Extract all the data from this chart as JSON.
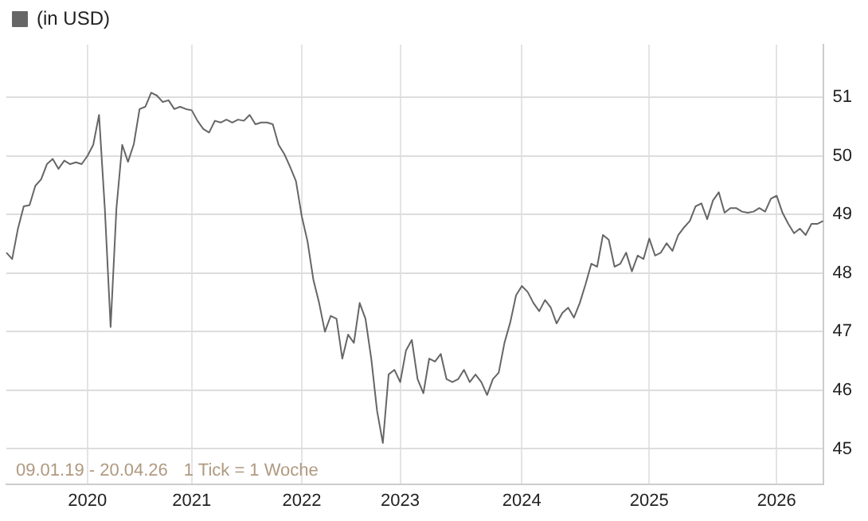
{
  "chart_data": {
    "type": "line",
    "categories": [
      null,
      null,
      null,
      null,
      null,
      null,
      null,
      null,
      null,
      null,
      null,
      null,
      null,
      null,
      "2020",
      null,
      null,
      null,
      null,
      null,
      null,
      null,
      null,
      null,
      null,
      null,
      null,
      null,
      null,
      null,
      null,
      null,
      "2021",
      null,
      null,
      null,
      null,
      null,
      null,
      null,
      null,
      null,
      null,
      null,
      null,
      null,
      null,
      null,
      null,
      null,
      null,
      "2022",
      null,
      null,
      null,
      null,
      null,
      null,
      null,
      null,
      null,
      null,
      null,
      null,
      null,
      null,
      null,
      null,
      "2023",
      null,
      null,
      null,
      null,
      null,
      null,
      null,
      null,
      null,
      null,
      null,
      null,
      null,
      null,
      null,
      null,
      null,
      null,
      null,
      null,
      "2024",
      null,
      null,
      null,
      null,
      null,
      null,
      null,
      null,
      null,
      null,
      null,
      null,
      null,
      null,
      null,
      null,
      null,
      null,
      null,
      null,
      null,
      "2025",
      null,
      null,
      null,
      null,
      null,
      null,
      null,
      null,
      null,
      null,
      null,
      null,
      null,
      null,
      null,
      null,
      null,
      null,
      null,
      null,
      null,
      "2026",
      null,
      null,
      null,
      null,
      null,
      null,
      null,
      null
    ],
    "series": [
      {
        "name": "(in USD)",
        "color": "#666666",
        "values": [
          48.35,
          48.24,
          48.76,
          49.14,
          49.16,
          49.49,
          49.6,
          49.86,
          49.95,
          49.78,
          49.92,
          49.86,
          49.89,
          49.86,
          50.0,
          50.19,
          50.7,
          49.1,
          47.08,
          49.1,
          50.19,
          49.9,
          50.2,
          50.8,
          50.84,
          51.08,
          51.03,
          50.92,
          50.95,
          50.8,
          50.84,
          50.8,
          50.78,
          50.6,
          50.46,
          50.4,
          50.6,
          50.57,
          50.62,
          50.57,
          50.62,
          50.6,
          50.7,
          50.54,
          50.57,
          50.57,
          50.54,
          50.19,
          50.03,
          49.81,
          49.57,
          48.97,
          48.54,
          47.89,
          47.49,
          47.0,
          47.27,
          47.22,
          46.54,
          46.95,
          46.81,
          47.49,
          47.22,
          46.54,
          45.65,
          45.1,
          46.27,
          46.35,
          46.14,
          46.68,
          46.86,
          46.19,
          45.95,
          46.54,
          46.49,
          46.62,
          46.19,
          46.14,
          46.19,
          46.35,
          46.14,
          46.27,
          46.14,
          45.92,
          46.19,
          46.3,
          46.81,
          47.16,
          47.62,
          47.78,
          47.68,
          47.49,
          47.35,
          47.54,
          47.41,
          47.14,
          47.32,
          47.41,
          47.24,
          47.49,
          47.81,
          48.16,
          48.11,
          48.65,
          48.57,
          48.11,
          48.16,
          48.35,
          48.03,
          48.3,
          48.24,
          48.59,
          48.3,
          48.35,
          48.51,
          48.38,
          48.65,
          48.78,
          48.89,
          49.14,
          49.19,
          48.92,
          49.24,
          49.38,
          49.03,
          49.11,
          49.11,
          49.05,
          49.03,
          49.05,
          49.11,
          49.05,
          49.27,
          49.32,
          49.03,
          48.84,
          48.68,
          48.76,
          48.65,
          48.84,
          48.84,
          48.89
        ]
      }
    ],
    "ylim": [
      44.4,
      51.9
    ],
    "yticks": [
      45,
      46,
      47,
      48,
      49,
      50,
      51
    ],
    "grid": true,
    "legend": "top left",
    "marker": "none",
    "line_style": "solid",
    "annotations": [
      "09.01.19 - 20.04.26",
      "1 Tick = 1 Woche"
    ]
  }
}
